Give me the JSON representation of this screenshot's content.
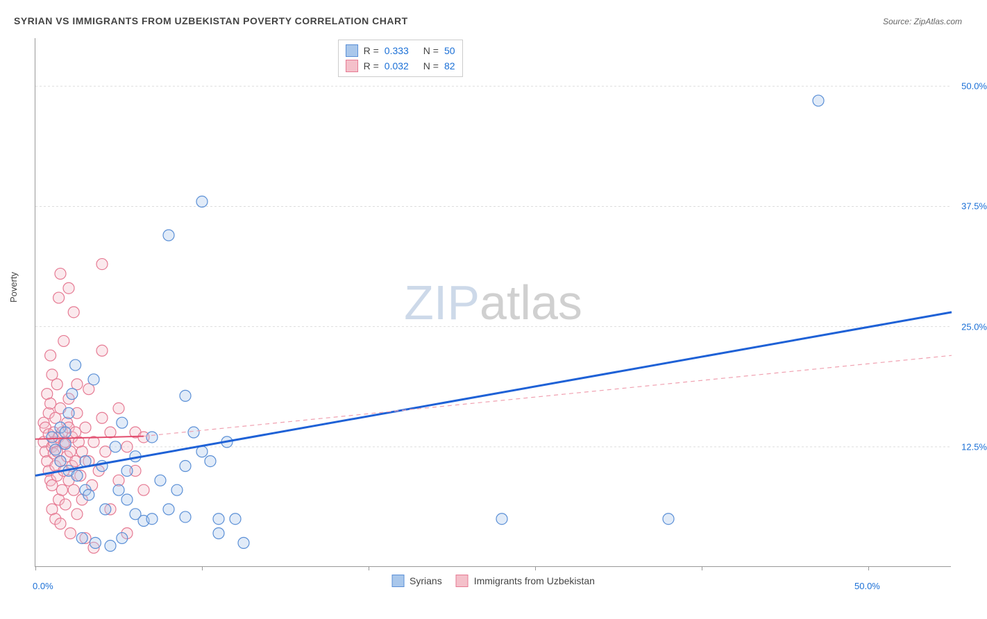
{
  "title": "SYRIAN VS IMMIGRANTS FROM UZBEKISTAN POVERTY CORRELATION CHART",
  "source": "Source: ZipAtlas.com",
  "ylabel": "Poverty",
  "watermark": {
    "part1": "ZIP",
    "part2": "atlas"
  },
  "chart": {
    "type": "scatter",
    "background_color": "#ffffff",
    "grid_color": "#dddddd",
    "axis_color": "#999999",
    "xlim": [
      0,
      55
    ],
    "ylim": [
      0,
      55
    ],
    "x_ticks": [
      0,
      10,
      20,
      30,
      40,
      50
    ],
    "y_ticks": [
      12.5,
      25.0,
      37.5,
      50.0
    ],
    "y_tick_labels": [
      "12.5%",
      "25.0%",
      "37.5%",
      "50.0%"
    ],
    "y_tick_color": "#1a6fd6",
    "x_tick_labels_shown": [
      0,
      50
    ],
    "x_tick_label_text": [
      "0.0%",
      "50.0%"
    ],
    "x_tick_color": "#1a6fd6",
    "marker_radius": 8,
    "marker_fill_opacity": 0.35,
    "marker_stroke_width": 1.2
  },
  "series": [
    {
      "key": "syrians",
      "label": "Syrians",
      "color_fill": "#a9c7eb",
      "color_stroke": "#5a8fd6",
      "R": "0.333",
      "N": "50",
      "trend": {
        "solid": {
          "x1": 0,
          "y1": 9.5,
          "x2": 55,
          "y2": 26.5,
          "color": "#1e61d6",
          "width": 3
        },
        "dashed": null
      },
      "points": [
        [
          1.0,
          13.5
        ],
        [
          1.2,
          12.2
        ],
        [
          1.5,
          11.0
        ],
        [
          1.5,
          14.5
        ],
        [
          1.8,
          14.0
        ],
        [
          1.8,
          12.8
        ],
        [
          2.0,
          16.0
        ],
        [
          2.0,
          10.0
        ],
        [
          2.2,
          18.0
        ],
        [
          2.4,
          21.0
        ],
        [
          2.5,
          9.5
        ],
        [
          2.8,
          3.0
        ],
        [
          3.0,
          11.0
        ],
        [
          3.0,
          8.0
        ],
        [
          3.2,
          7.5
        ],
        [
          3.5,
          19.5
        ],
        [
          3.6,
          2.5
        ],
        [
          4.0,
          10.5
        ],
        [
          4.2,
          6.0
        ],
        [
          4.5,
          2.2
        ],
        [
          4.8,
          12.5
        ],
        [
          5.0,
          8.0
        ],
        [
          5.2,
          15.0
        ],
        [
          5.2,
          3.0
        ],
        [
          5.5,
          10.0
        ],
        [
          5.5,
          7.0
        ],
        [
          6.0,
          5.5
        ],
        [
          6.0,
          11.5
        ],
        [
          6.5,
          4.8
        ],
        [
          7.0,
          13.5
        ],
        [
          7.0,
          5.0
        ],
        [
          7.5,
          9.0
        ],
        [
          8.0,
          34.5
        ],
        [
          8.0,
          6.0
        ],
        [
          8.5,
          8.0
        ],
        [
          9.0,
          10.5
        ],
        [
          9.0,
          5.2
        ],
        [
          9.0,
          17.8
        ],
        [
          9.5,
          14.0
        ],
        [
          10.0,
          12.0
        ],
        [
          10.0,
          38.0
        ],
        [
          10.5,
          11.0
        ],
        [
          11.0,
          5.0
        ],
        [
          11.0,
          3.5
        ],
        [
          11.5,
          13.0
        ],
        [
          12.0,
          5.0
        ],
        [
          12.5,
          2.5
        ],
        [
          28.0,
          5.0
        ],
        [
          38.0,
          5.0
        ],
        [
          47.0,
          48.5
        ]
      ]
    },
    {
      "key": "uzbek",
      "label": "Immigrants from Uzbekistan",
      "color_fill": "#f4c0ca",
      "color_stroke": "#e67a93",
      "R": "0.032",
      "N": "82",
      "trend": {
        "solid": {
          "x1": 0,
          "y1": 13.3,
          "x2": 6.5,
          "y2": 13.6,
          "color": "#e24c6e",
          "width": 2
        },
        "dashed": {
          "x1": 6.5,
          "y1": 13.6,
          "x2": 55,
          "y2": 22.0,
          "color": "#f0a0b0",
          "width": 1.2
        }
      },
      "points": [
        [
          0.5,
          15.0
        ],
        [
          0.5,
          13.0
        ],
        [
          0.6,
          12.0
        ],
        [
          0.6,
          14.5
        ],
        [
          0.7,
          18.0
        ],
        [
          0.7,
          11.0
        ],
        [
          0.8,
          10.0
        ],
        [
          0.8,
          16.0
        ],
        [
          0.8,
          13.8
        ],
        [
          0.9,
          9.0
        ],
        [
          0.9,
          22.0
        ],
        [
          0.9,
          17.0
        ],
        [
          1.0,
          12.5
        ],
        [
          1.0,
          20.0
        ],
        [
          1.0,
          8.5
        ],
        [
          1.0,
          6.0
        ],
        [
          1.1,
          11.8
        ],
        [
          1.1,
          14.0
        ],
        [
          1.1,
          13.0
        ],
        [
          1.2,
          10.5
        ],
        [
          1.2,
          15.5
        ],
        [
          1.2,
          5.0
        ],
        [
          1.3,
          12.0
        ],
        [
          1.3,
          9.5
        ],
        [
          1.3,
          19.0
        ],
        [
          1.4,
          13.5
        ],
        [
          1.4,
          7.0
        ],
        [
          1.4,
          28.0
        ],
        [
          1.5,
          11.0
        ],
        [
          1.5,
          16.5
        ],
        [
          1.5,
          4.5
        ],
        [
          1.5,
          30.5
        ],
        [
          1.6,
          14.0
        ],
        [
          1.6,
          8.0
        ],
        [
          1.7,
          12.8
        ],
        [
          1.7,
          10.0
        ],
        [
          1.7,
          23.5
        ],
        [
          1.8,
          13.0
        ],
        [
          1.8,
          6.5
        ],
        [
          1.9,
          15.0
        ],
        [
          1.9,
          11.5
        ],
        [
          2.0,
          9.0
        ],
        [
          2.0,
          14.5
        ],
        [
          2.0,
          17.5
        ],
        [
          2.0,
          29.0
        ],
        [
          2.1,
          12.0
        ],
        [
          2.1,
          3.5
        ],
        [
          2.2,
          10.5
        ],
        [
          2.2,
          13.5
        ],
        [
          2.3,
          8.0
        ],
        [
          2.3,
          26.5
        ],
        [
          2.4,
          14.0
        ],
        [
          2.4,
          11.0
        ],
        [
          2.5,
          16.0
        ],
        [
          2.5,
          5.5
        ],
        [
          2.5,
          19.0
        ],
        [
          2.6,
          13.0
        ],
        [
          2.7,
          9.5
        ],
        [
          2.8,
          12.0
        ],
        [
          2.8,
          7.0
        ],
        [
          3.0,
          14.5
        ],
        [
          3.0,
          3.0
        ],
        [
          3.2,
          11.0
        ],
        [
          3.2,
          18.5
        ],
        [
          3.4,
          8.5
        ],
        [
          3.5,
          13.0
        ],
        [
          3.5,
          2.0
        ],
        [
          3.8,
          10.0
        ],
        [
          4.0,
          22.5
        ],
        [
          4.0,
          15.5
        ],
        [
          4.0,
          31.5
        ],
        [
          4.2,
          12.0
        ],
        [
          4.5,
          6.0
        ],
        [
          4.5,
          14.0
        ],
        [
          5.0,
          16.5
        ],
        [
          5.0,
          9.0
        ],
        [
          5.5,
          12.5
        ],
        [
          5.5,
          3.5
        ],
        [
          6.0,
          14.0
        ],
        [
          6.0,
          10.0
        ],
        [
          6.5,
          13.5
        ],
        [
          6.5,
          8.0
        ]
      ]
    }
  ],
  "legend_top": {
    "rows": [
      {
        "series": "syrians",
        "R_label": "R =",
        "N_label": "N ="
      },
      {
        "series": "uzbek",
        "R_label": "R =",
        "N_label": "N ="
      }
    ],
    "text_color": "#444",
    "value_color": "#1a6fd6"
  },
  "legend_bottom": {
    "items": [
      {
        "series": "syrians"
      },
      {
        "series": "uzbek"
      }
    ]
  }
}
